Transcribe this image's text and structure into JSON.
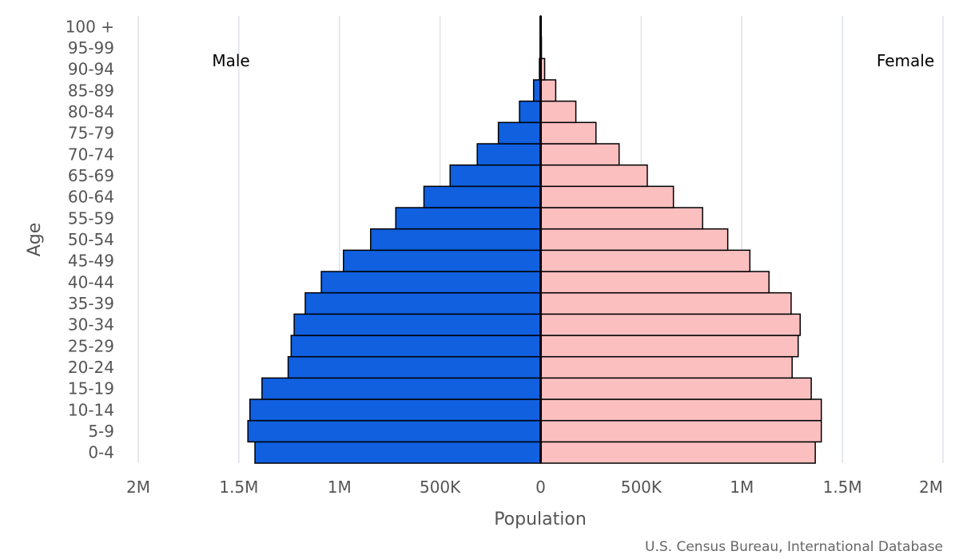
{
  "chart_data": {
    "type": "bar",
    "orientation": "horizontal-population-pyramid",
    "categories": [
      "0-4",
      "5-9",
      "10-14",
      "15-19",
      "20-24",
      "25-29",
      "30-34",
      "35-39",
      "40-44",
      "45-49",
      "50-54",
      "55-59",
      "60-64",
      "65-69",
      "70-74",
      "75-79",
      "80-84",
      "85-89",
      "90-94",
      "95-99",
      "100 +"
    ],
    "series": [
      {
        "name": "Male",
        "color": "#1060e0",
        "values": [
          1420000,
          1455000,
          1445000,
          1385000,
          1255000,
          1240000,
          1225000,
          1170000,
          1090000,
          980000,
          845000,
          720000,
          580000,
          450000,
          315000,
          210000,
          105000,
          35000,
          6000,
          1000,
          300
        ]
      },
      {
        "name": "Female",
        "color": "#fbbfc0",
        "values": [
          1365000,
          1395000,
          1395000,
          1345000,
          1250000,
          1280000,
          1290000,
          1245000,
          1135000,
          1040000,
          930000,
          805000,
          660000,
          530000,
          390000,
          275000,
          175000,
          75000,
          20000,
          4000,
          1000
        ]
      }
    ],
    "xlabel": "Population",
    "ylabel": "Age",
    "xlim": [
      -2000000,
      2000000
    ],
    "xticks": [
      -2000000,
      -1500000,
      -1000000,
      -500000,
      0,
      500000,
      1000000,
      1500000,
      2000000
    ],
    "xtick_labels": [
      "2M",
      "1.5M",
      "1M",
      "500K",
      "0",
      "500K",
      "1M",
      "1.5M",
      "2M"
    ],
    "side_labels": {
      "left": "Male",
      "right": "Female"
    },
    "grid": true,
    "credit": "U.S. Census Bureau, International Database"
  }
}
